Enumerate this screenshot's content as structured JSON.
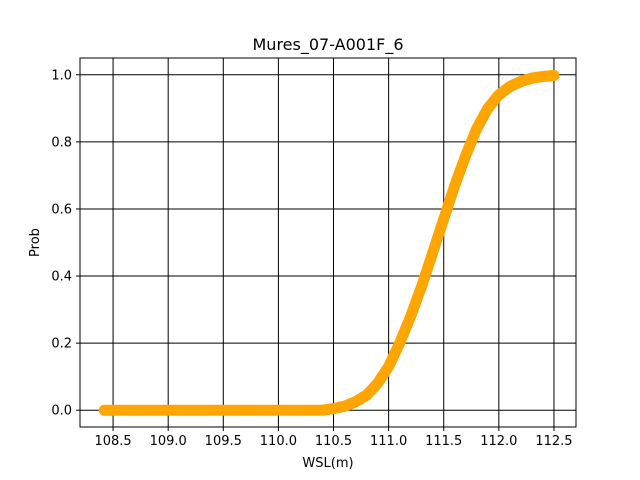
{
  "chart_data": {
    "type": "scatter",
    "title": "Mures_07-A001F_6",
    "xlabel": "WSL(m)",
    "ylabel": "Prob",
    "xlim": [
      108.2,
      112.7
    ],
    "ylim": [
      -0.05,
      1.05
    ],
    "x_ticks": [
      108.5,
      109.0,
      109.5,
      110.0,
      110.5,
      111.0,
      111.5,
      112.0,
      112.5
    ],
    "x_tick_labels": [
      "108.5",
      "109.0",
      "109.5",
      "110.0",
      "110.5",
      "111.0",
      "111.5",
      "112.0",
      "112.5"
    ],
    "y_ticks": [
      0.0,
      0.2,
      0.4,
      0.6,
      0.8,
      1.0
    ],
    "y_tick_labels": [
      "0.0",
      "0.2",
      "0.4",
      "0.6",
      "0.8",
      "1.0"
    ],
    "grid": true,
    "marker_color": "#FFA500",
    "series": [
      {
        "x": [
          108.42,
          108.6,
          108.8,
          109.0,
          109.2,
          109.4,
          109.6,
          109.8,
          110.0,
          110.2,
          110.4,
          110.5,
          110.6,
          110.7,
          110.8,
          110.9,
          111.0,
          111.1,
          111.2,
          111.3,
          111.4,
          111.5,
          111.6,
          111.7,
          111.8,
          111.9,
          112.0,
          112.1,
          112.2,
          112.3,
          112.4,
          112.5
        ],
        "y": [
          0.0,
          0.0,
          0.0,
          0.0,
          0.0,
          0.0,
          0.0,
          0.0,
          0.0,
          0.0,
          0.0,
          0.005,
          0.012,
          0.025,
          0.045,
          0.08,
          0.13,
          0.2,
          0.28,
          0.37,
          0.47,
          0.57,
          0.67,
          0.76,
          0.84,
          0.9,
          0.94,
          0.965,
          0.98,
          0.99,
          0.995,
          0.998
        ]
      }
    ]
  }
}
